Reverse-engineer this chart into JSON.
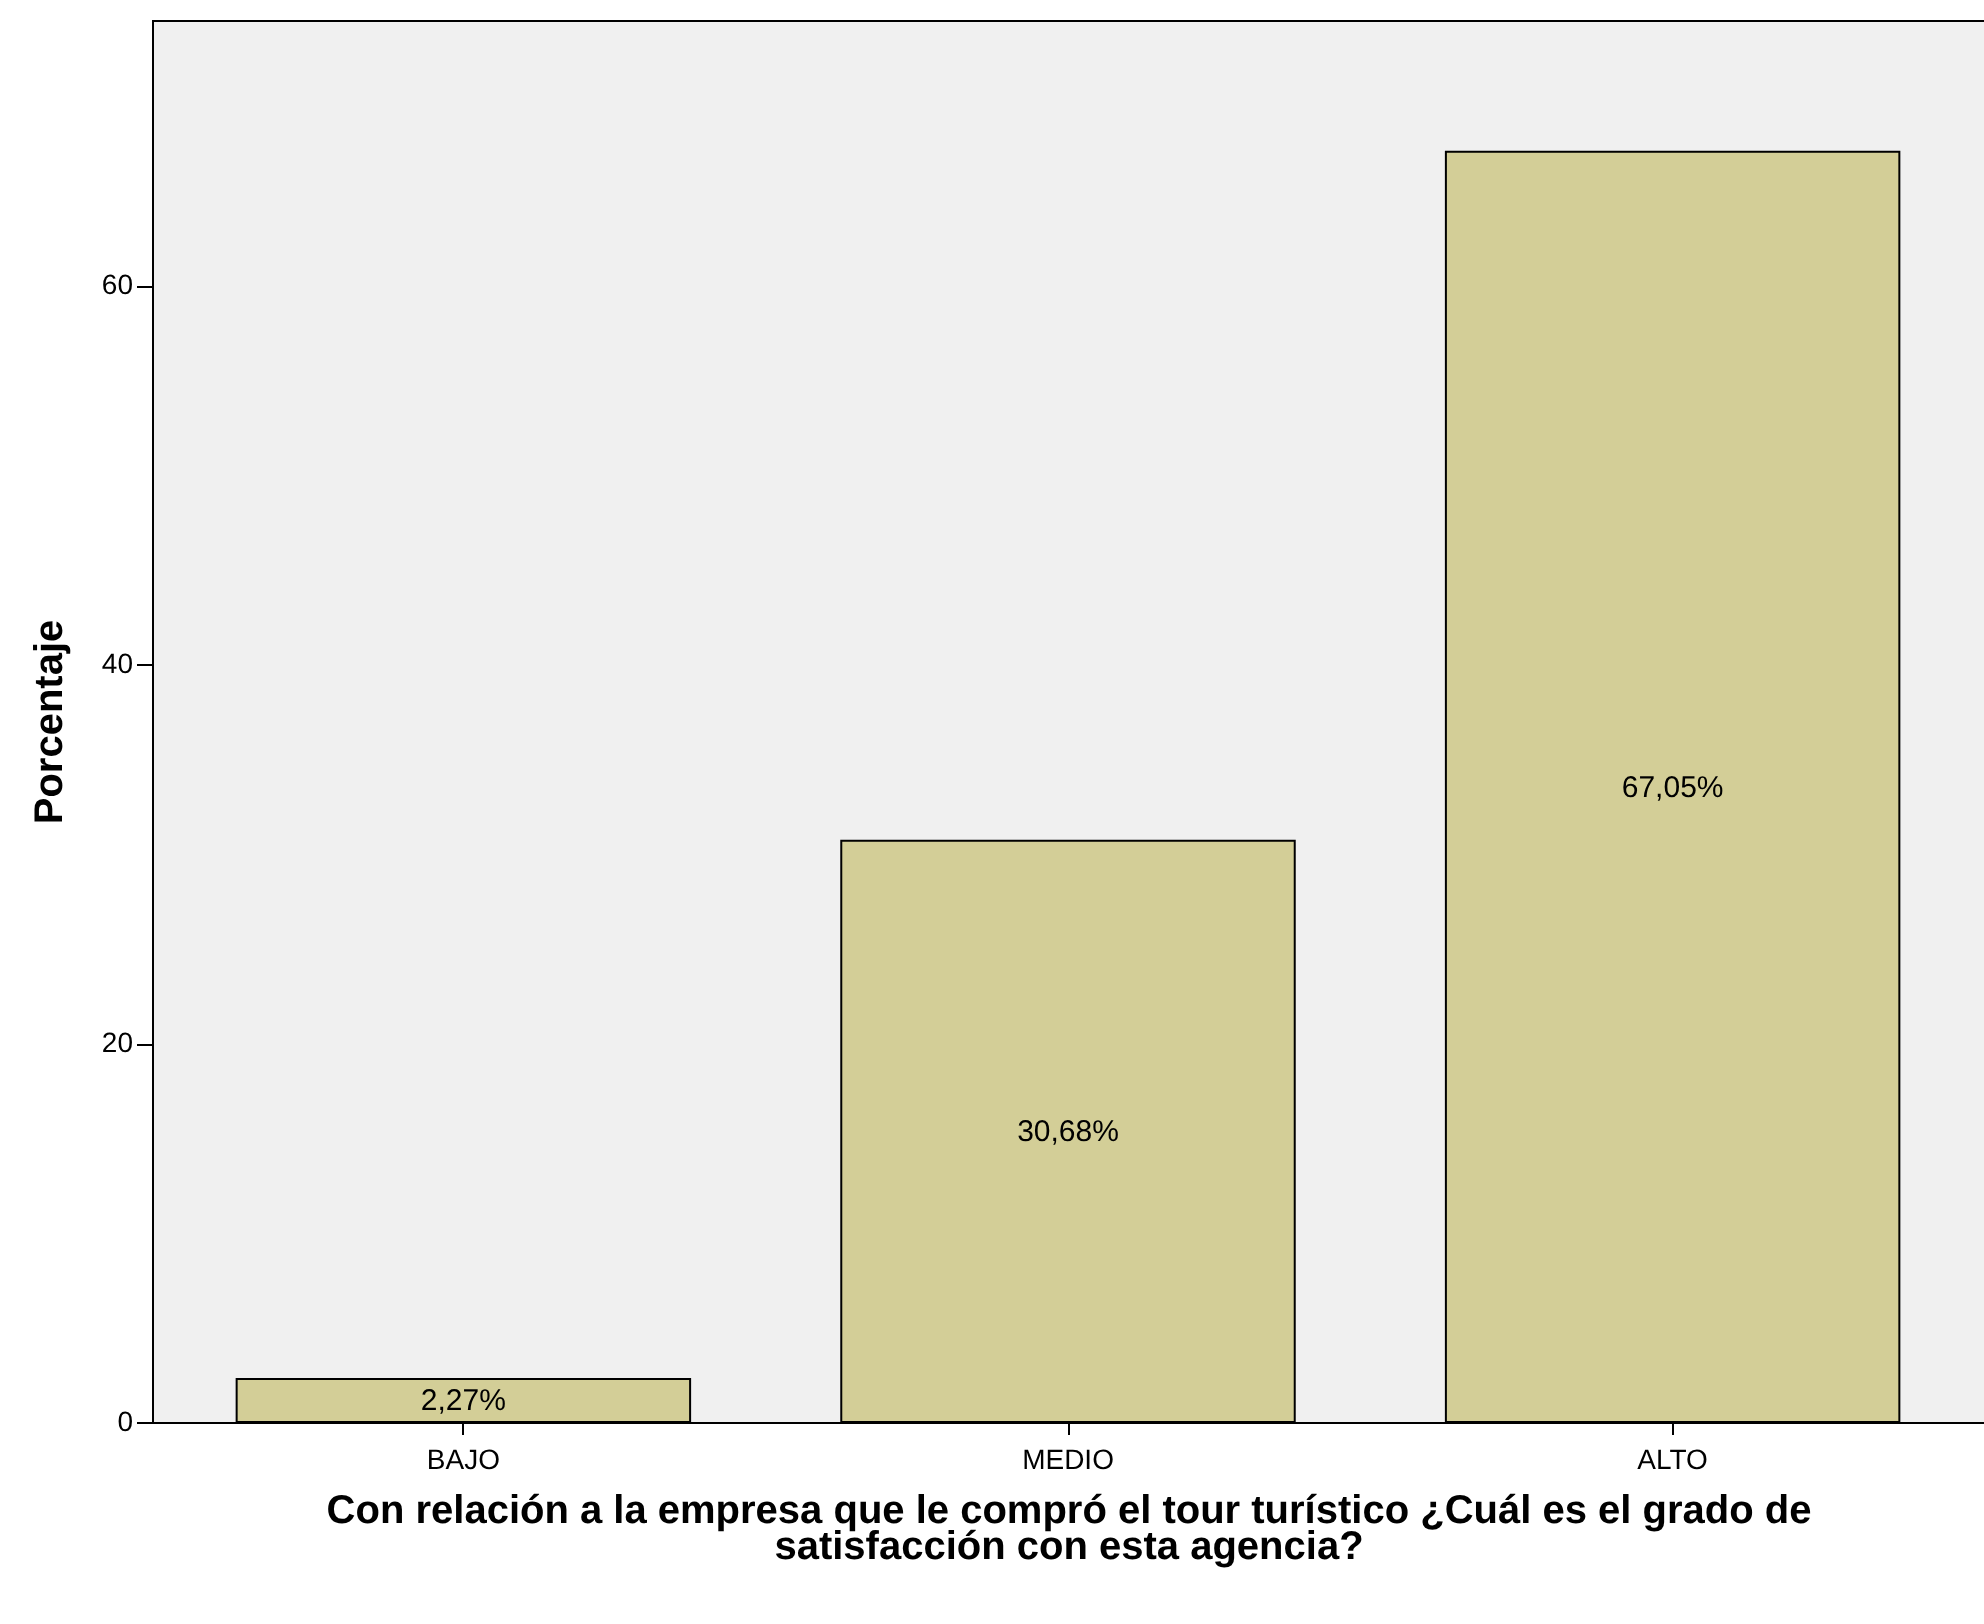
{
  "chart_data": {
    "type": "bar",
    "xlabel": "Con relación a la empresa que le compró el tour turístico ¿Cuál es el grado de satisfacción con esta agencia?",
    "ylabel": "Porcentaje",
    "categories": [
      "BAJO",
      "MEDIO",
      "ALTO"
    ],
    "values": [
      2.27,
      30.68,
      67.05
    ],
    "value_labels": [
      "2,27%",
      "30,68%",
      "67,05%"
    ],
    "color": "#d3ce97",
    "ylim": [
      0,
      74
    ],
    "yticks": [
      0,
      20,
      40,
      60
    ],
    "grid": false
  }
}
